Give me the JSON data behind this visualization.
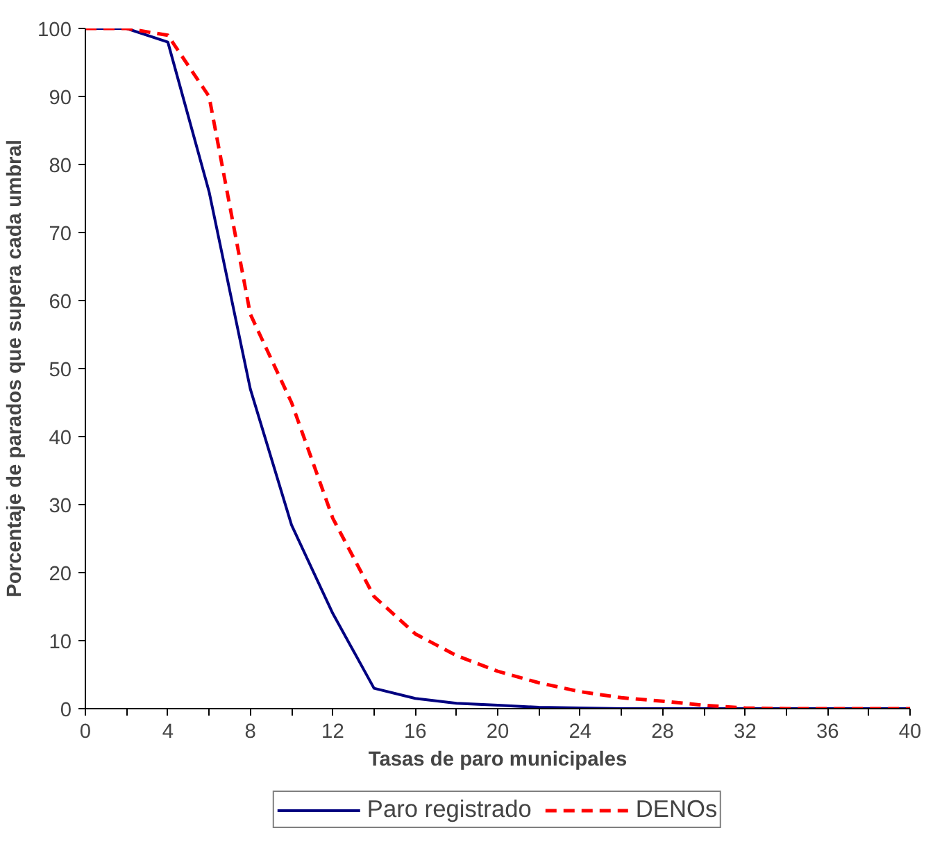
{
  "chart_data": {
    "type": "line",
    "xlabel": "Tasas de paro municipales",
    "ylabel": "Porcentaje de parados que supera cada umbral",
    "x": [
      0,
      2,
      4,
      6,
      8,
      10,
      12,
      14,
      16,
      18,
      20,
      22,
      24,
      26,
      28,
      30,
      32,
      34,
      36,
      38,
      40
    ],
    "series": [
      {
        "name": "Paro registrado",
        "color": "#000080",
        "line_style": "solid",
        "values": [
          100,
          100,
          98,
          76,
          47,
          27,
          14,
          3,
          1.5,
          0.8,
          0.5,
          0.2,
          0.1,
          0,
          0,
          0,
          0,
          0,
          0,
          0,
          0
        ]
      },
      {
        "name": "DENOs",
        "color": "#ff0000",
        "line_style": "dashed",
        "values": [
          100,
          100,
          99,
          90,
          58,
          45,
          28,
          16.5,
          11,
          7.8,
          5.5,
          3.8,
          2.5,
          1.6,
          1.1,
          0.5,
          0.1,
          0,
          0,
          0,
          0
        ]
      }
    ],
    "xlim": [
      0,
      40
    ],
    "ylim": [
      0,
      100
    ],
    "xticks": [
      0,
      {
        "value": 2,
        "label": null
      },
      4,
      {
        "value": 6,
        "label": null
      },
      8,
      {
        "value": 10,
        "label": null
      },
      12,
      {
        "value": 14,
        "label": null
      },
      16,
      {
        "value": 18,
        "label": null
      },
      20,
      {
        "value": 22,
        "label": null
      },
      24,
      {
        "value": 26,
        "label": null
      },
      28,
      {
        "value": 30,
        "label": null
      },
      32,
      {
        "value": 34,
        "label": null
      },
      36,
      {
        "value": 38,
        "label": null
      },
      40
    ],
    "yticks": [
      0,
      10,
      20,
      30,
      40,
      50,
      60,
      70,
      80,
      90,
      100
    ],
    "grid": false,
    "legend": "bottom",
    "marker": "none"
  }
}
